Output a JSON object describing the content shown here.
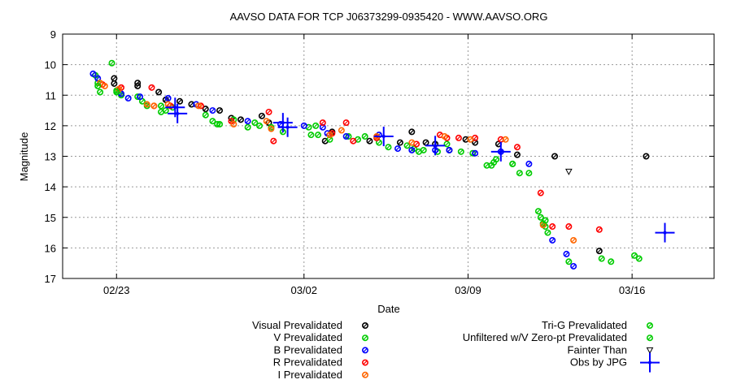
{
  "chart_data": {
    "type": "scatter",
    "title": "AAVSO DATA FOR TCP J06373299-0935420 - WWW.AAVSO.ORG",
    "xlabel": "Date",
    "ylabel": "Magnitude",
    "x_unit": "days (February 2024, Feb 29 = day 29; Mar 1 = day 30)",
    "xlim": [
      20.7,
      48.5
    ],
    "ylim": [
      17,
      9
    ],
    "y_inverted": true,
    "grid": true,
    "xticks": [
      {
        "value": 23,
        "label": "02/23"
      },
      {
        "value": 31,
        "label": "03/02"
      },
      {
        "value": 38,
        "label": "03/09"
      },
      {
        "value": 45,
        "label": "03/16"
      }
    ],
    "yticks": [
      9,
      10,
      11,
      12,
      13,
      14,
      15,
      16,
      17
    ],
    "legend_position": "bottom",
    "series": [
      {
        "name": "Visual Prevalidated",
        "marker": "circle-open",
        "color": "#000000",
        "points": [
          [
            22.9,
            10.45
          ],
          [
            22.9,
            10.62
          ],
          [
            23.9,
            10.6
          ],
          [
            23.9,
            10.7
          ],
          [
            24.8,
            10.9
          ],
          [
            25.1,
            11.15
          ],
          [
            25.7,
            11.2
          ],
          [
            26.2,
            11.3
          ],
          [
            26.8,
            11.45
          ],
          [
            27.4,
            11.5
          ],
          [
            27.9,
            11.75
          ],
          [
            28.3,
            11.8
          ],
          [
            29.2,
            11.68
          ],
          [
            29.5,
            11.9
          ],
          [
            31.9,
            12.5
          ],
          [
            32.2,
            12.2
          ],
          [
            33.8,
            12.5
          ],
          [
            35.1,
            12.55
          ],
          [
            35.6,
            12.2
          ],
          [
            36.2,
            12.55
          ],
          [
            36.6,
            12.6
          ],
          [
            37.2,
            12.8
          ],
          [
            37.9,
            12.45
          ],
          [
            38.3,
            12.55
          ],
          [
            39.3,
            12.6
          ],
          [
            40.1,
            12.95
          ],
          [
            41.7,
            13.0
          ],
          [
            43.6,
            16.1
          ],
          [
            45.6,
            13.0
          ]
        ]
      },
      {
        "name": "V Prevalidated",
        "marker": "circle-open",
        "color": "#00cc00",
        "points": [
          [
            22.1,
            10.35
          ],
          [
            22.2,
            10.6
          ],
          [
            22.3,
            10.9
          ],
          [
            22.8,
            9.95
          ],
          [
            23.0,
            10.85
          ],
          [
            23.2,
            11.0
          ],
          [
            23.9,
            11.05
          ],
          [
            24.1,
            11.2
          ],
          [
            24.3,
            11.35
          ],
          [
            24.9,
            11.35
          ],
          [
            25.1,
            11.5
          ],
          [
            25.4,
            11.4
          ],
          [
            26.8,
            11.65
          ],
          [
            27.1,
            11.85
          ],
          [
            27.4,
            11.95
          ],
          [
            28.0,
            11.8
          ],
          [
            28.6,
            12.05
          ],
          [
            28.9,
            11.9
          ],
          [
            29.6,
            12.05
          ],
          [
            30.1,
            12.2
          ],
          [
            31.2,
            12.05
          ],
          [
            31.5,
            12.0
          ],
          [
            31.6,
            12.3
          ],
          [
            32.1,
            12.45
          ],
          [
            32.9,
            12.35
          ],
          [
            33.3,
            12.45
          ],
          [
            33.6,
            12.35
          ],
          [
            34.2,
            12.55
          ],
          [
            35.4,
            12.65
          ],
          [
            35.7,
            12.75
          ],
          [
            36.1,
            12.8
          ],
          [
            36.7,
            12.85
          ],
          [
            37.1,
            12.6
          ],
          [
            37.7,
            12.85
          ],
          [
            38.2,
            12.9
          ],
          [
            38.8,
            13.3
          ],
          [
            39.2,
            13.1
          ],
          [
            39.9,
            13.25
          ],
          [
            40.6,
            13.55
          ],
          [
            41.0,
            14.8
          ],
          [
            41.1,
            15.0
          ],
          [
            41.2,
            15.2
          ],
          [
            41.3,
            15.3
          ],
          [
            41.4,
            15.5
          ],
          [
            42.3,
            16.45
          ],
          [
            43.7,
            16.35
          ],
          [
            44.1,
            16.45
          ],
          [
            45.1,
            16.25
          ],
          [
            45.3,
            16.35
          ]
        ]
      },
      {
        "name": "B Prevalidated",
        "marker": "circle-open",
        "color": "#0000ff",
        "points": [
          [
            22.0,
            10.3
          ],
          [
            22.2,
            10.45
          ],
          [
            23.2,
            10.95
          ],
          [
            23.5,
            11.1
          ],
          [
            24.0,
            11.05
          ],
          [
            25.2,
            11.1
          ],
          [
            26.4,
            11.3
          ],
          [
            27.1,
            11.5
          ],
          [
            28.6,
            11.85
          ],
          [
            30.0,
            11.95
          ],
          [
            31.0,
            12.0
          ],
          [
            31.8,
            12.05
          ],
          [
            32.0,
            12.25
          ],
          [
            32.8,
            12.35
          ],
          [
            34.2,
            12.3
          ],
          [
            35.0,
            12.75
          ],
          [
            35.6,
            12.8
          ],
          [
            36.6,
            12.8
          ],
          [
            37.2,
            12.8
          ],
          [
            38.3,
            12.9
          ],
          [
            39.4,
            12.85
          ],
          [
            40.6,
            13.25
          ],
          [
            41.6,
            15.75
          ],
          [
            42.2,
            16.2
          ],
          [
            42.5,
            16.6
          ]
        ]
      },
      {
        "name": "R Prevalidated",
        "marker": "circle-open",
        "color": "#ff0000",
        "points": [
          [
            22.4,
            10.65
          ],
          [
            23.2,
            10.75
          ],
          [
            24.5,
            10.75
          ],
          [
            24.6,
            11.35
          ],
          [
            25.3,
            11.35
          ],
          [
            26.6,
            11.35
          ],
          [
            27.9,
            11.85
          ],
          [
            29.5,
            11.55
          ],
          [
            29.7,
            12.5
          ],
          [
            31.8,
            11.9
          ],
          [
            32.2,
            12.25
          ],
          [
            32.8,
            11.9
          ],
          [
            33.1,
            12.5
          ],
          [
            34.1,
            12.4
          ],
          [
            35.8,
            12.6
          ],
          [
            36.8,
            12.3
          ],
          [
            37.1,
            12.4
          ],
          [
            37.6,
            12.4
          ],
          [
            38.3,
            12.4
          ],
          [
            39.4,
            12.45
          ],
          [
            40.1,
            12.7
          ],
          [
            41.1,
            14.2
          ],
          [
            41.6,
            15.3
          ],
          [
            42.3,
            15.3
          ],
          [
            43.6,
            15.4
          ]
        ]
      },
      {
        "name": "I Prevalidated",
        "marker": "circle-open",
        "color": "#ff6600",
        "points": [
          [
            22.3,
            10.6
          ],
          [
            22.5,
            10.7
          ],
          [
            23.1,
            10.8
          ],
          [
            24.3,
            11.3
          ],
          [
            24.6,
            11.35
          ],
          [
            25.2,
            11.3
          ],
          [
            26.5,
            11.35
          ],
          [
            28.0,
            11.95
          ],
          [
            29.4,
            11.85
          ],
          [
            29.6,
            12.1
          ],
          [
            32.1,
            12.3
          ],
          [
            32.6,
            12.15
          ],
          [
            34.1,
            12.35
          ],
          [
            35.6,
            12.55
          ],
          [
            37.0,
            12.35
          ],
          [
            38.1,
            12.45
          ],
          [
            39.6,
            12.45
          ],
          [
            41.2,
            15.25
          ],
          [
            42.5,
            15.75
          ]
        ]
      },
      {
        "name": "Tri-G Prevalidated",
        "marker": "circle-open",
        "color": "#00cc00",
        "points": [
          [
            39.1,
            13.2
          ],
          [
            39.9,
            13.25
          ],
          [
            40.2,
            13.55
          ]
        ]
      },
      {
        "name": "Unfiltered w/V Zero-pt Prevalidated",
        "marker": "circle-open",
        "color": "#00cc00",
        "points": [
          [
            22.2,
            10.7
          ],
          [
            23.0,
            10.9
          ],
          [
            24.9,
            11.55
          ],
          [
            27.3,
            11.95
          ],
          [
            29.1,
            12.0
          ],
          [
            31.3,
            12.3
          ],
          [
            34.6,
            12.7
          ],
          [
            35.9,
            12.85
          ],
          [
            39.0,
            13.3
          ],
          [
            41.3,
            15.1
          ]
        ]
      },
      {
        "name": "Fainter Than",
        "marker": "triangle-down",
        "color": "#000000",
        "points": [
          [
            42.3,
            13.5
          ]
        ]
      },
      {
        "name": "Obs by JPG",
        "marker": "cross-errorbar",
        "color": "#0000ff",
        "points": [
          [
            25.5,
            11.4
          ],
          [
            25.6,
            11.6
          ],
          [
            30.1,
            11.9
          ],
          [
            30.3,
            12.05
          ],
          [
            34.4,
            12.35
          ],
          [
            36.6,
            12.65
          ],
          [
            39.4,
            12.85
          ],
          [
            46.4,
            15.5
          ]
        ]
      }
    ]
  }
}
